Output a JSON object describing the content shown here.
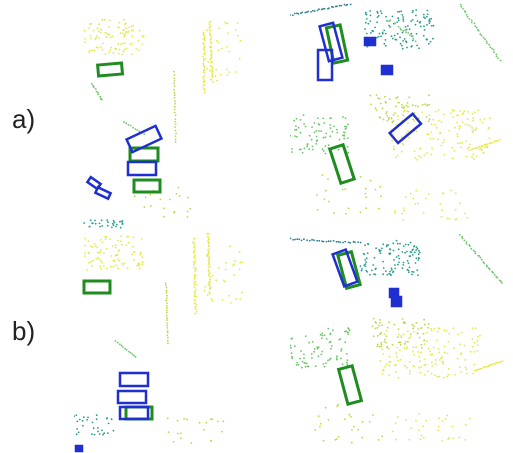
{
  "rows": [
    {
      "label": "a)"
    },
    {
      "label": "b)"
    }
  ],
  "colors": {
    "prediction_box": "#1f2fd0",
    "ground_truth_box": "#1e8c1e",
    "point_yellow": "#e6e84a",
    "point_yellowgreen": "#b9d84a",
    "point_green": "#6cc46a",
    "point_teal": "#2a9d8f",
    "point_tealdark": "#2b7f8e"
  }
}
